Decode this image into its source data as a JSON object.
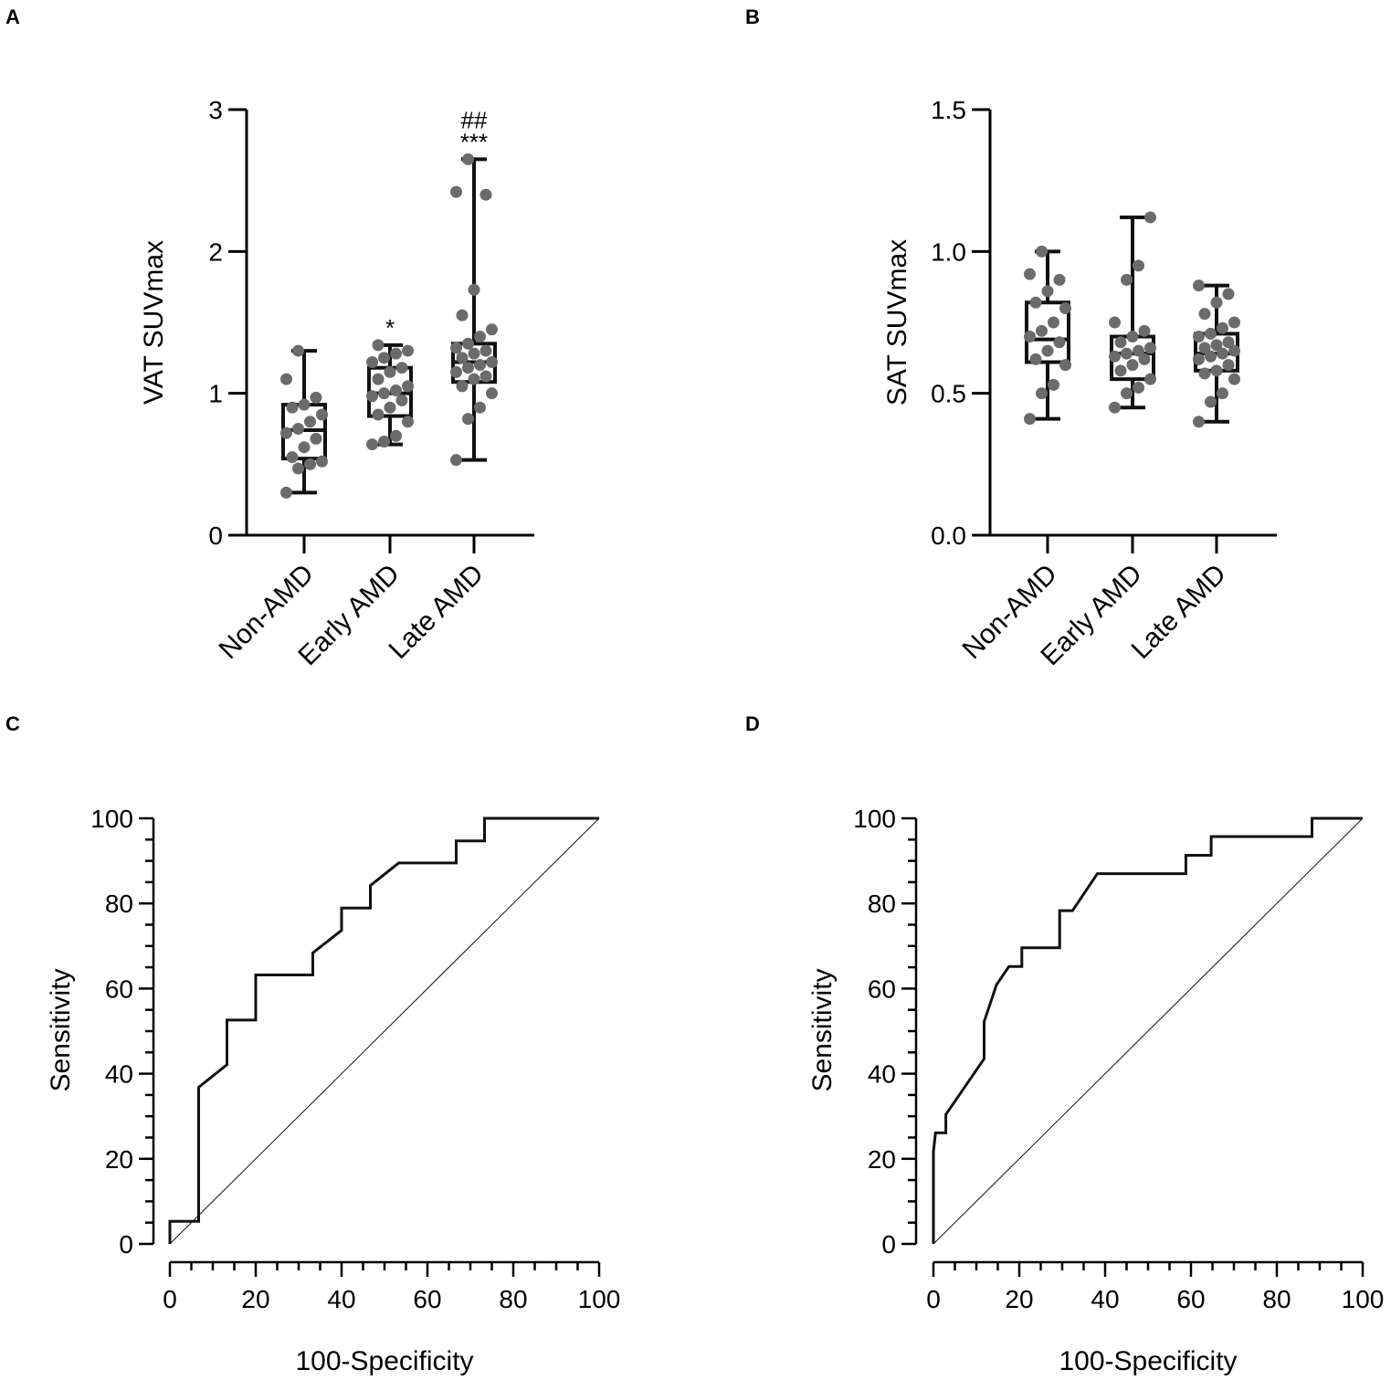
{
  "figure": {
    "panels": [
      "A",
      "B",
      "C",
      "D"
    ]
  },
  "colors": {
    "axis": "#000000",
    "box": "#111111",
    "dot": "#6b6b6b",
    "curve": "#111111",
    "reference": "#111111"
  },
  "chart_data": [
    {
      "panel": "A",
      "type": "box",
      "ylabel": "VAT SUVmax",
      "ylim": [
        0,
        3
      ],
      "yticks": [
        0,
        1,
        2,
        3
      ],
      "ytick_labels": [
        "0",
        "1",
        "2",
        "3"
      ],
      "categories": [
        "Non-AMD",
        "Early AMD",
        "Late AMD"
      ],
      "groups": [
        {
          "name": "Non-AMD",
          "min": 0.3,
          "q1": 0.54,
          "median": 0.74,
          "q3": 0.92,
          "max": 1.3,
          "points": [
            0.3,
            0.47,
            0.5,
            0.52,
            0.55,
            0.62,
            0.68,
            0.72,
            0.75,
            0.8,
            0.85,
            0.9,
            0.92,
            0.97,
            1.1,
            1.3
          ],
          "annotation": ""
        },
        {
          "name": "Early AMD",
          "min": 0.64,
          "q1": 0.84,
          "median": 1.0,
          "q3": 1.18,
          "max": 1.34,
          "points": [
            0.64,
            0.66,
            0.7,
            0.8,
            0.85,
            0.9,
            0.95,
            0.98,
            1.0,
            1.02,
            1.05,
            1.1,
            1.15,
            1.18,
            1.22,
            1.25,
            1.28,
            1.3,
            1.34
          ],
          "annotation": "*"
        },
        {
          "name": "Late AMD",
          "min": 0.53,
          "q1": 1.08,
          "median": 1.22,
          "q3": 1.35,
          "max": 2.65,
          "points": [
            0.53,
            0.82,
            0.9,
            1.0,
            1.05,
            1.1,
            1.12,
            1.15,
            1.18,
            1.2,
            1.22,
            1.25,
            1.28,
            1.3,
            1.32,
            1.35,
            1.4,
            1.45,
            1.55,
            1.73,
            2.4,
            2.42,
            2.65
          ],
          "annotation": "***",
          "annotation2": "##"
        }
      ]
    },
    {
      "panel": "B",
      "type": "box",
      "ylabel": "SAT SUVmax",
      "ylim": [
        0,
        1.5
      ],
      "yticks": [
        0,
        0.5,
        1.0,
        1.5
      ],
      "ytick_labels": [
        "0.0",
        "0.5",
        "1.0",
        "1.5"
      ],
      "categories": [
        "Non-AMD",
        "Early AMD",
        "Late AMD"
      ],
      "groups": [
        {
          "name": "Non-AMD",
          "min": 0.41,
          "q1": 0.61,
          "median": 0.69,
          "q3": 0.82,
          "max": 1.0,
          "points": [
            0.41,
            0.5,
            0.53,
            0.6,
            0.62,
            0.65,
            0.68,
            0.7,
            0.72,
            0.75,
            0.8,
            0.82,
            0.86,
            0.9,
            0.92,
            1.0
          ],
          "annotation": ""
        },
        {
          "name": "Early AMD",
          "min": 0.45,
          "q1": 0.55,
          "median": 0.64,
          "q3": 0.7,
          "max": 1.12,
          "points": [
            0.45,
            0.5,
            0.52,
            0.55,
            0.58,
            0.6,
            0.62,
            0.63,
            0.64,
            0.65,
            0.66,
            0.68,
            0.7,
            0.72,
            0.75,
            0.9,
            0.95,
            1.12
          ],
          "annotation": ""
        },
        {
          "name": "Late AMD",
          "min": 0.4,
          "q1": 0.58,
          "median": 0.64,
          "q3": 0.71,
          "max": 0.88,
          "points": [
            0.4,
            0.47,
            0.5,
            0.55,
            0.57,
            0.58,
            0.6,
            0.62,
            0.63,
            0.64,
            0.65,
            0.66,
            0.67,
            0.68,
            0.7,
            0.71,
            0.73,
            0.75,
            0.78,
            0.82,
            0.85,
            0.88
          ],
          "annotation": ""
        }
      ]
    },
    {
      "panel": "C",
      "type": "line",
      "xlabel": "100-Specificity",
      "ylabel": "Sensitivity",
      "xlim": [
        0,
        100
      ],
      "ylim": [
        0,
        100
      ],
      "xticks": [
        0,
        20,
        40,
        60,
        80,
        100
      ],
      "yticks": [
        0,
        20,
        40,
        60,
        80,
        100
      ],
      "series": [
        {
          "name": "ROC",
          "x": [
            0,
            0,
            6.7,
            6.7,
            13.3,
            13.3,
            20,
            20,
            33.3,
            33.3,
            40,
            40,
            46.7,
            46.7,
            53.3,
            66.7,
            66.7,
            73.3,
            73.3,
            100
          ],
          "y": [
            0,
            5.3,
            5.3,
            36.8,
            42.1,
            52.6,
            52.6,
            63.2,
            63.2,
            68.4,
            73.7,
            78.9,
            78.9,
            84.2,
            89.5,
            89.5,
            94.7,
            94.7,
            100,
            100
          ]
        },
        {
          "name": "Reference",
          "x": [
            0,
            100
          ],
          "y": [
            0,
            100
          ]
        }
      ]
    },
    {
      "panel": "D",
      "type": "line",
      "xlabel": "100-Specificity",
      "ylabel": "Sensitivity",
      "xlim": [
        0,
        100
      ],
      "ylim": [
        0,
        100
      ],
      "xticks": [
        0,
        20,
        40,
        60,
        80,
        100
      ],
      "yticks": [
        0,
        20,
        40,
        60,
        80,
        100
      ],
      "series": [
        {
          "name": "ROC",
          "x": [
            0,
            0,
            0.5,
            2.9,
            2.9,
            5.9,
            8.8,
            11.8,
            11.8,
            14.7,
            17.6,
            20.6,
            20.6,
            29.4,
            29.4,
            32.4,
            38.2,
            58.8,
            58.8,
            64.7,
            64.7,
            88.2,
            88.2,
            100
          ],
          "y": [
            0,
            21.7,
            26.1,
            26.1,
            30.4,
            34.8,
            39.1,
            43.5,
            52.2,
            60.9,
            65.2,
            65.2,
            69.6,
            69.6,
            78.3,
            78.3,
            87,
            87,
            91.3,
            91.3,
            95.7,
            95.7,
            100,
            100
          ]
        },
        {
          "name": "Reference",
          "x": [
            0,
            100
          ],
          "y": [
            0,
            100
          ]
        }
      ]
    }
  ]
}
